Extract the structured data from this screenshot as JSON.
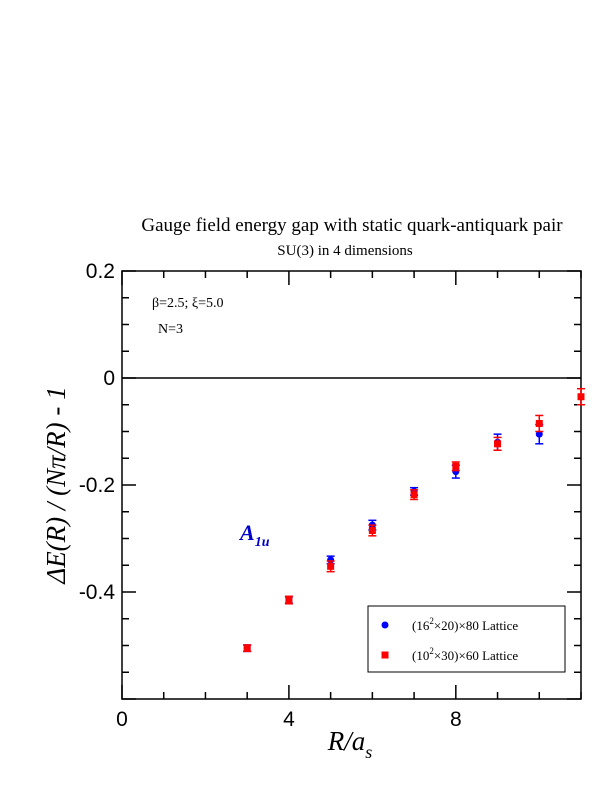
{
  "chart_data": {
    "type": "scatter",
    "title": "Gauge field energy gap with static quark-antiquark pair",
    "subtitle": "SU(3) in 4 dimensions",
    "ylabel": "ΔE(R) / (Nπ/R) - 1",
    "xlabel": "R/a",
    "xlabel_sub": "s",
    "xlim": [
      0,
      11
    ],
    "ylim": [
      -0.6,
      0.2
    ],
    "x_ticks": [
      "0",
      "4",
      "8"
    ],
    "y_ticks": [
      "0.2",
      "0",
      "-0.2",
      "-0.4"
    ],
    "zero_line": true,
    "annotations": {
      "params": "β=2.5;  ξ=5.0",
      "n": "N=3",
      "channel": "A",
      "channel_sub": "1u"
    },
    "legend_position": "bottom-right",
    "series": [
      {
        "name": "(16²×20)×80 Lattice",
        "name_parts": [
          "(16",
          "2",
          "×20)×80 Lattice"
        ],
        "color": "#0000ff",
        "marker": "circle",
        "x": [
          3,
          4,
          5,
          6,
          7,
          8,
          9,
          10
        ],
        "y": [
          -0.505,
          -0.415,
          -0.34,
          -0.275,
          -0.212,
          -0.175,
          -0.12,
          -0.105
        ],
        "err": [
          0.006,
          0.006,
          0.007,
          0.009,
          0.007,
          0.012,
          0.015,
          0.018
        ]
      },
      {
        "name": "(10²×30)×60 Lattice",
        "name_parts": [
          "(10",
          "2",
          "×30)×60 Lattice"
        ],
        "color": "#ff0000",
        "marker": "square",
        "x": [
          3,
          4,
          5,
          6,
          7,
          8,
          9,
          10,
          11
        ],
        "y": [
          -0.505,
          -0.415,
          -0.352,
          -0.285,
          -0.218,
          -0.165,
          -0.123,
          -0.085,
          -0.035
        ],
        "err": [
          0.006,
          0.007,
          0.01,
          0.01,
          0.009,
          0.008,
          0.012,
          0.015,
          0.015
        ]
      }
    ]
  }
}
